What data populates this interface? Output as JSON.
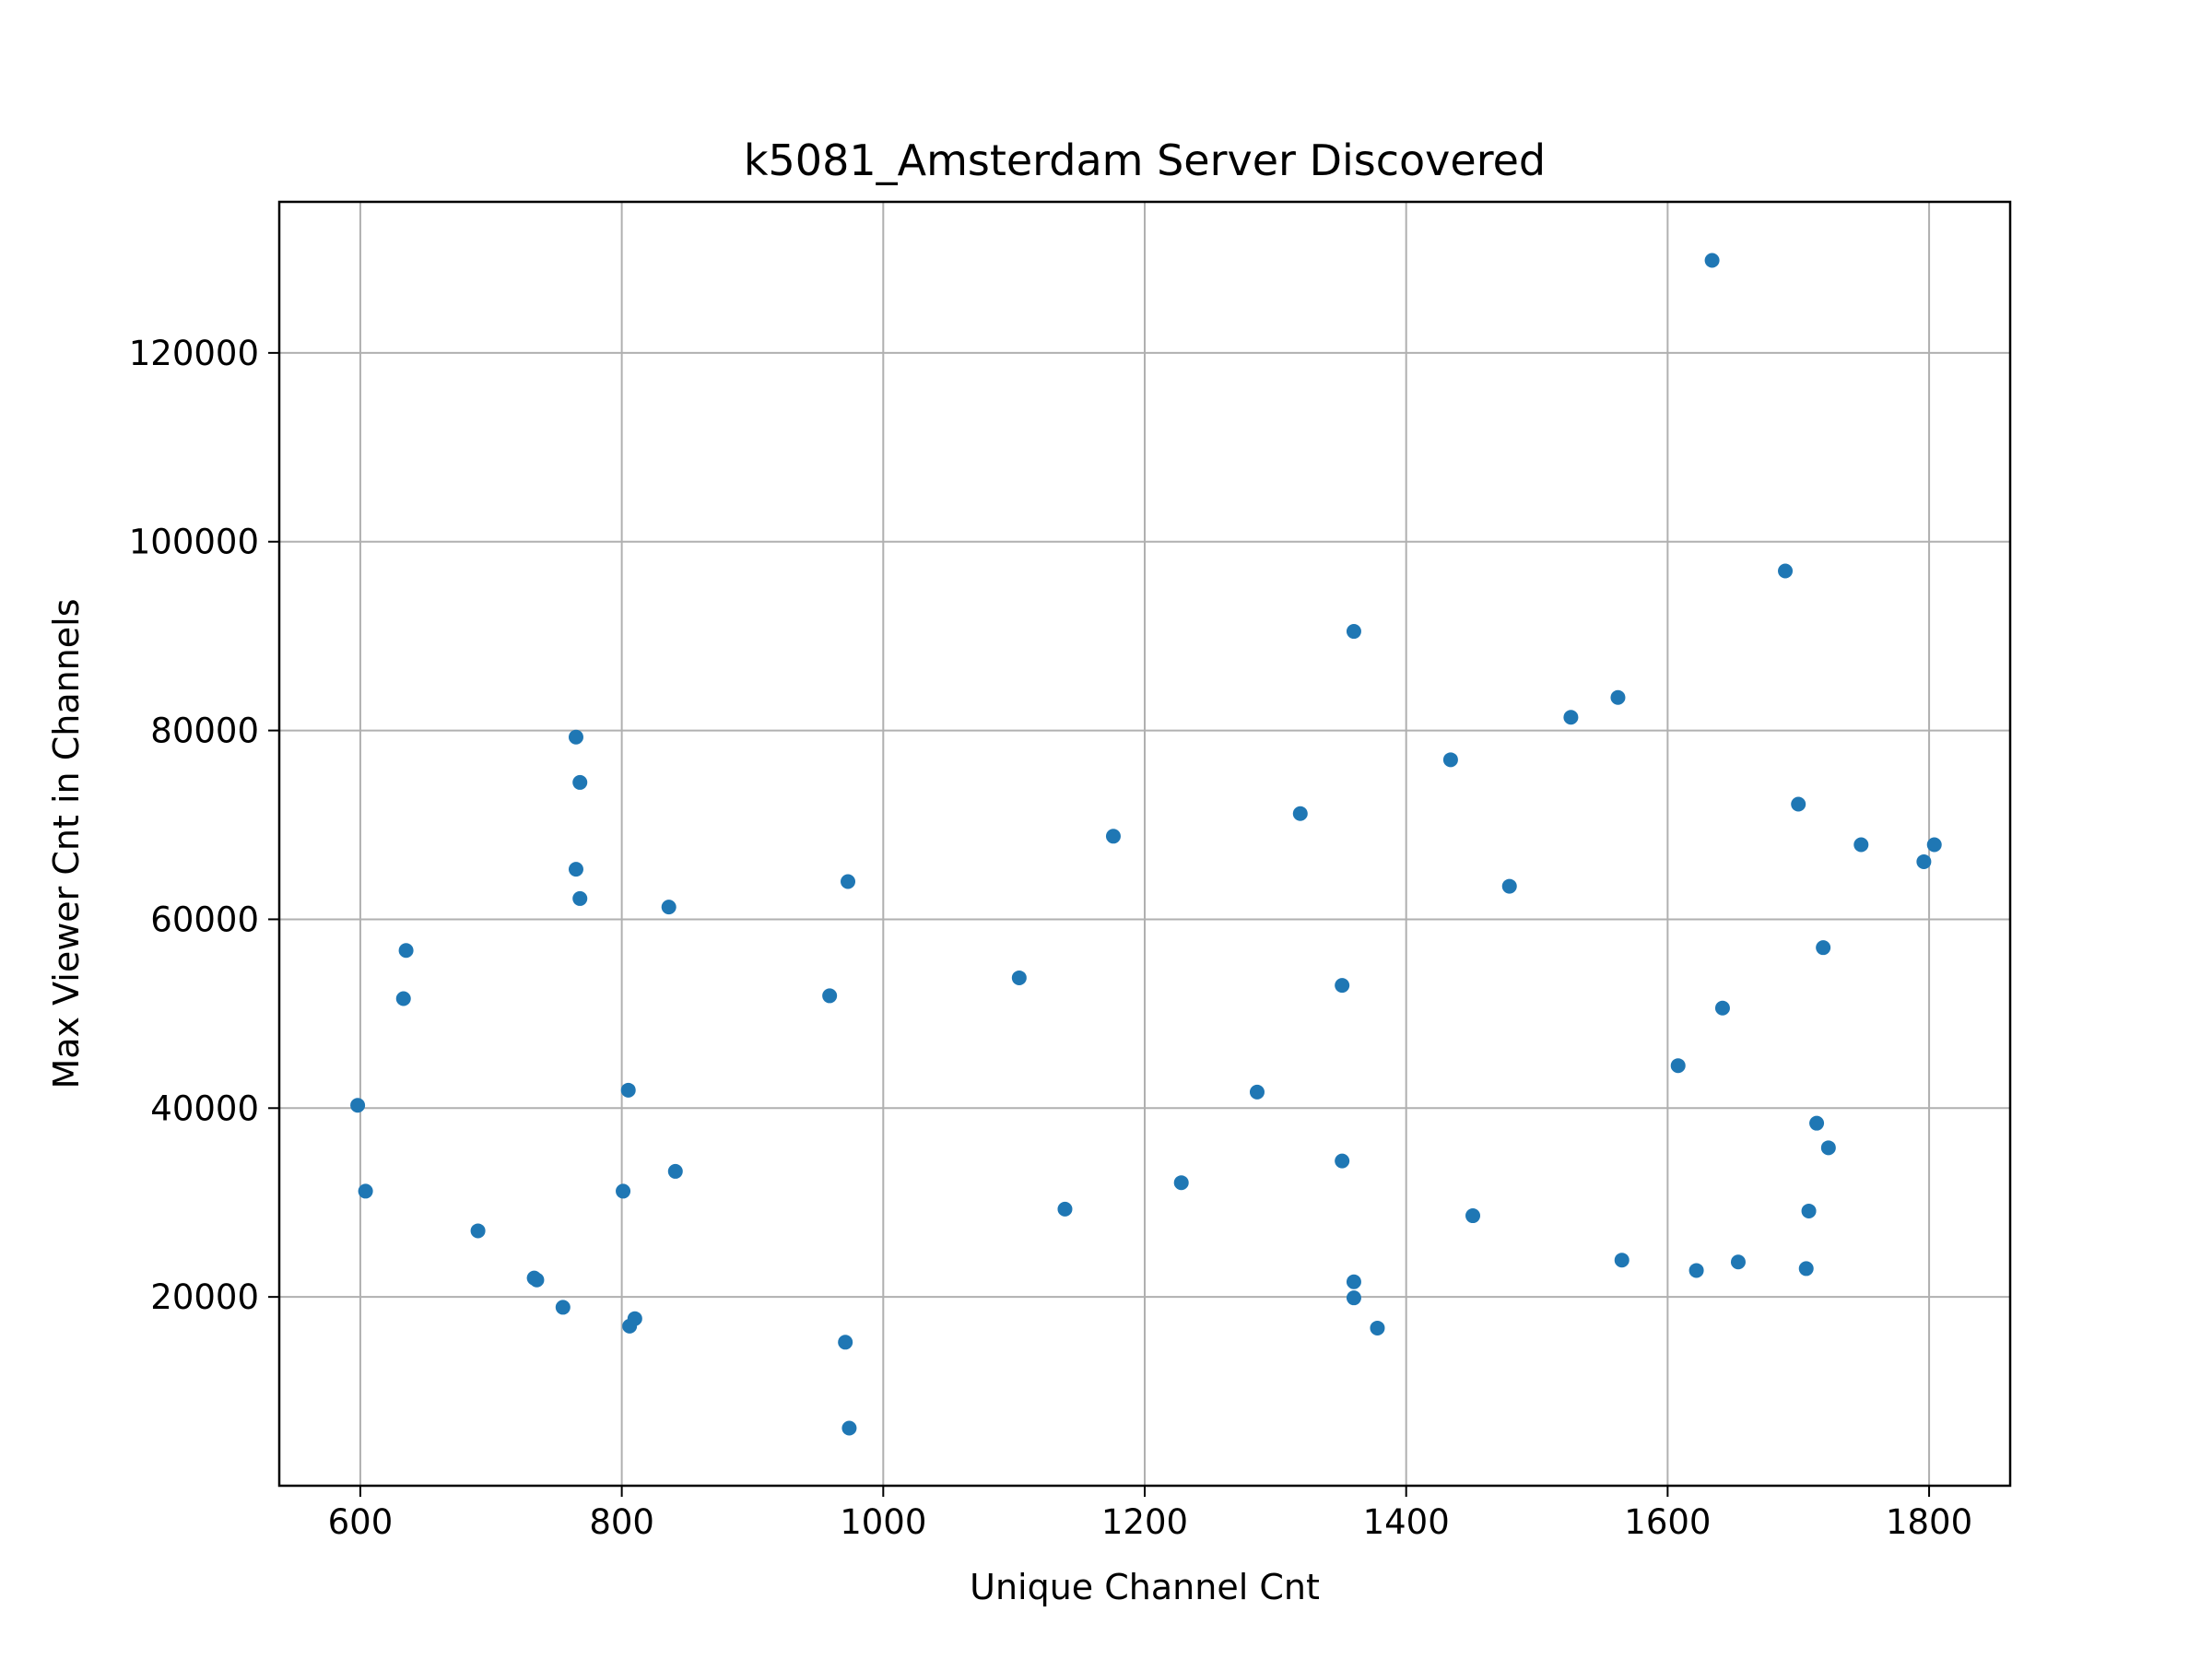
{
  "chart_data": {
    "type": "scatter",
    "title": "k5081_Amsterdam Server Discovered",
    "xlabel": "Unique Channel Cnt",
    "ylabel": "Max Viewer Cnt in Channels",
    "xlim": [
      538,
      1862
    ],
    "ylim": [
      0,
      136000
    ],
    "xticks": [
      600,
      800,
      1000,
      1200,
      1400,
      1600,
      1800
    ],
    "yticks": [
      20000,
      40000,
      60000,
      80000,
      100000,
      120000
    ],
    "grid": true,
    "marker_color": "#1f77b4",
    "series": [
      {
        "points": [
          [
            598,
            40300
          ],
          [
            604,
            31200
          ],
          [
            633,
            51600
          ],
          [
            635,
            56700
          ],
          [
            690,
            27000
          ],
          [
            733,
            22000
          ],
          [
            735,
            21800
          ],
          [
            755,
            18900
          ],
          [
            765,
            79300
          ],
          [
            765,
            65300
          ],
          [
            768,
            74500
          ],
          [
            768,
            62200
          ],
          [
            801,
            31200
          ],
          [
            805,
            41900
          ],
          [
            806,
            16900
          ],
          [
            810,
            17700
          ],
          [
            836,
            61300
          ],
          [
            841,
            33300
          ],
          [
            959,
            51900
          ],
          [
            971,
            15200
          ],
          [
            973,
            64000
          ],
          [
            974,
            6100
          ],
          [
            1104,
            53800
          ],
          [
            1139,
            29300
          ],
          [
            1176,
            68800
          ],
          [
            1228,
            32100
          ],
          [
            1286,
            41700
          ],
          [
            1319,
            71200
          ],
          [
            1351,
            53000
          ],
          [
            1351,
            34400
          ],
          [
            1360,
            90500
          ],
          [
            1360,
            21600
          ],
          [
            1360,
            19900
          ],
          [
            1378,
            16700
          ],
          [
            1434,
            76900
          ],
          [
            1451,
            28600
          ],
          [
            1479,
            63500
          ],
          [
            1526,
            81400
          ],
          [
            1562,
            83500
          ],
          [
            1565,
            23900
          ],
          [
            1608,
            44500
          ],
          [
            1622,
            22800
          ],
          [
            1634,
            129800
          ],
          [
            1642,
            50600
          ],
          [
            1654,
            23700
          ],
          [
            1690,
            96900
          ],
          [
            1700,
            72200
          ],
          [
            1706,
            23000
          ],
          [
            1708,
            29100
          ],
          [
            1714,
            38400
          ],
          [
            1719,
            57000
          ],
          [
            1723,
            35800
          ],
          [
            1748,
            67900
          ],
          [
            1796,
            66100
          ],
          [
            1804,
            67900
          ]
        ]
      }
    ]
  }
}
